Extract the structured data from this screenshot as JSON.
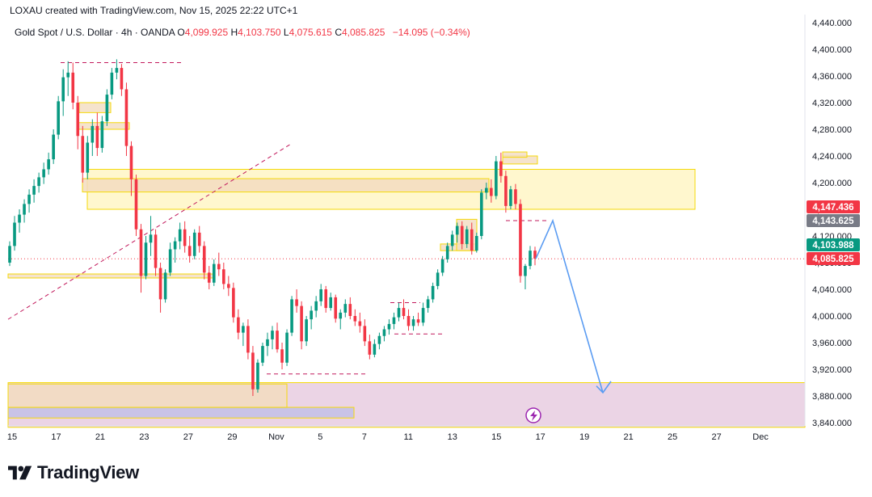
{
  "header": {
    "caption": "LOXAU created with TradingView.com, Nov 15, 2025 22:22 UTC+1",
    "symbol": "Gold Spot / U.S. Dollar · 4h · OANDA",
    "o_label": "O",
    "o_value": "4,099.925",
    "h_label": "H",
    "h_value": "4,103.750",
    "l_label": "L",
    "l_value": "4,075.615",
    "c_label": "C",
    "c_value": "4,085.825",
    "change": "−14.095 (−0.34%)"
  },
  "brand": {
    "logo_icon": "tradingview-logo-icon",
    "name": "TradingView"
  },
  "colors": {
    "up": "#089981",
    "down": "#f23645",
    "zone_yellow": "#fff6c5",
    "zone_border": "#f5d90a",
    "zone_orange": "#f3dcc0",
    "zone_pink": "#e8cde0",
    "zone_violet": "#c3bfe8",
    "projection": "#5b9cf2",
    "dashed": "#c2185b"
  },
  "chart_data": {
    "type": "candlestick",
    "symbol": "XAUUSD",
    "timeframe": "4h",
    "ylim": [
      3830,
      4450
    ],
    "yticks": [
      3840,
      3880,
      3920,
      3960,
      4000,
      4040,
      4080,
      4120,
      4160,
      4200,
      4240,
      4280,
      4320,
      4360,
      4400,
      4440
    ],
    "ytick_labels": [
      "3,840.000",
      "3,880.000",
      "3,920.000",
      "3,960.000",
      "4,000.000",
      "4,040.000",
      "4,080.000",
      "4,120.000",
      "4,160.000",
      "4,200.000",
      "4,240.000",
      "4,280.000",
      "4,320.000",
      "4,360.000",
      "4,400.000",
      "4,440.000"
    ],
    "xticks": [
      {
        "label": "15",
        "idx": 0
      },
      {
        "label": "17",
        "idx": 12
      },
      {
        "label": "21",
        "idx": 24
      },
      {
        "label": "23",
        "idx": 36
      },
      {
        "label": "27",
        "idx": 48
      },
      {
        "label": "29",
        "idx": 60
      },
      {
        "label": "Nov",
        "idx": 72
      },
      {
        "label": "5",
        "idx": 84
      },
      {
        "label": "7",
        "idx": 96
      },
      {
        "label": "11",
        "idx": 108
      },
      {
        "label": "13",
        "idx": 120
      },
      {
        "label": "15",
        "idx": 132
      },
      {
        "label": "17",
        "idx": 144
      },
      {
        "label": "19",
        "idx": 156
      },
      {
        "label": "21",
        "idx": 168
      },
      {
        "label": "25",
        "idx": 180
      },
      {
        "label": "27",
        "idx": 192
      },
      {
        "label": "Dec",
        "idx": 204
      }
    ],
    "x_count": 215,
    "price_labels": [
      {
        "text": "4,147.436",
        "value": 4147.436,
        "color": "#f23645"
      },
      {
        "text": "4,143.625",
        "value": 4143.625,
        "color": "#787b86"
      },
      {
        "text": "4,103.988",
        "value": 4103.988,
        "color": "#089981"
      },
      {
        "text": "4,085.825",
        "value": 4085.825,
        "color": "#f23645"
      }
    ],
    "last_price": 4085.825,
    "candles_ohlc": [
      [
        4080,
        4112,
        4075,
        4105
      ],
      [
        4105,
        4150,
        4098,
        4140
      ],
      [
        4140,
        4160,
        4125,
        4152
      ],
      [
        4152,
        4175,
        4140,
        4168
      ],
      [
        4168,
        4190,
        4155,
        4182
      ],
      [
        4182,
        4205,
        4170,
        4195
      ],
      [
        4195,
        4215,
        4185,
        4208
      ],
      [
        4208,
        4230,
        4198,
        4220
      ],
      [
        4220,
        4245,
        4212,
        4235
      ],
      [
        4235,
        4280,
        4228,
        4272
      ],
      [
        4272,
        4330,
        4265,
        4322
      ],
      [
        4322,
        4370,
        4300,
        4358
      ],
      [
        4358,
        4382,
        4330,
        4365
      ],
      [
        4365,
        4380,
        4310,
        4320
      ],
      [
        4320,
        4330,
        4250,
        4270
      ],
      [
        4270,
        4285,
        4200,
        4215
      ],
      [
        4215,
        4270,
        4205,
        4260
      ],
      [
        4260,
        4295,
        4240,
        4285
      ],
      [
        4285,
        4305,
        4240,
        4252
      ],
      [
        4252,
        4300,
        4245,
        4292
      ],
      [
        4292,
        4340,
        4285,
        4332
      ],
      [
        4332,
        4372,
        4325,
        4365
      ],
      [
        4365,
        4385,
        4355,
        4372
      ],
      [
        4372,
        4378,
        4330,
        4340
      ],
      [
        4340,
        4350,
        4240,
        4255
      ],
      [
        4255,
        4262,
        4180,
        4205
      ],
      [
        4205,
        4212,
        4120,
        4130
      ],
      [
        4130,
        4138,
        4035,
        4060
      ],
      [
        4060,
        4120,
        4055,
        4110
      ],
      [
        4110,
        4150,
        4090,
        4122
      ],
      [
        4122,
        4130,
        4060,
        4072
      ],
      [
        4072,
        4080,
        4005,
        4025
      ],
      [
        4025,
        4070,
        4020,
        4065
      ],
      [
        4065,
        4110,
        4060,
        4100
      ],
      [
        4100,
        4118,
        4080,
        4112
      ],
      [
        4112,
        4140,
        4100,
        4130
      ],
      [
        4130,
        4142,
        4095,
        4105
      ],
      [
        4105,
        4120,
        4080,
        4090
      ],
      [
        4090,
        4130,
        4085,
        4125
      ],
      [
        4125,
        4135,
        4095,
        4105
      ],
      [
        4105,
        4112,
        4055,
        4065
      ],
      [
        4065,
        4075,
        4040,
        4050
      ],
      [
        4050,
        4085,
        4045,
        4078
      ],
      [
        4078,
        4095,
        4060,
        4070
      ],
      [
        4070,
        4080,
        4040,
        4048
      ],
      [
        4048,
        4060,
        4030,
        4042
      ],
      [
        4042,
        4050,
        3990,
        3998
      ],
      [
        3998,
        4010,
        3965,
        3975
      ],
      [
        3975,
        3990,
        3955,
        3985
      ],
      [
        3985,
        3995,
        3935,
        3945
      ],
      [
        3945,
        3955,
        3880,
        3890
      ],
      [
        3890,
        3935,
        3885,
        3930
      ],
      [
        3930,
        3960,
        3925,
        3955
      ],
      [
        3955,
        3975,
        3940,
        3965
      ],
      [
        3965,
        3985,
        3950,
        3978
      ],
      [
        3978,
        3990,
        3945,
        3950
      ],
      [
        3950,
        3960,
        3920,
        3930
      ],
      [
        3930,
        3980,
        3925,
        3975
      ],
      [
        3975,
        4030,
        3970,
        4025
      ],
      [
        4025,
        4040,
        4005,
        4015
      ],
      [
        4015,
        4022,
        3950,
        3962
      ],
      [
        3962,
        4000,
        3955,
        3995
      ],
      [
        3995,
        4015,
        3980,
        4008
      ],
      [
        4008,
        4030,
        3998,
        4022
      ],
      [
        4022,
        4048,
        4015,
        4040
      ],
      [
        4040,
        4045,
        4005,
        4012
      ],
      [
        4012,
        4035,
        4008,
        4028
      ],
      [
        4028,
        4032,
        3990,
        3996
      ],
      [
        3996,
        4010,
        3980,
        4005
      ],
      [
        4005,
        4025,
        3998,
        4018
      ],
      [
        4018,
        4028,
        3995,
        4000
      ],
      [
        4000,
        4010,
        3985,
        3992
      ],
      [
        3992,
        4005,
        3975,
        3985
      ],
      [
        3985,
        3995,
        3955,
        3962
      ],
      [
        3962,
        3972,
        3935,
        3942
      ],
      [
        3942,
        3965,
        3938,
        3958
      ],
      [
        3958,
        3975,
        3950,
        3970
      ],
      [
        3970,
        3985,
        3962,
        3980
      ],
      [
        3980,
        3995,
        3972,
        3988
      ],
      [
        3988,
        4005,
        3980,
        3998
      ],
      [
        3998,
        4020,
        3992,
        4012
      ],
      [
        4012,
        4025,
        3995,
        4000
      ],
      [
        4000,
        4010,
        3978,
        3985
      ],
      [
        3985,
        4000,
        3978,
        3995
      ],
      [
        3995,
        4005,
        3985,
        3990
      ],
      [
        3990,
        4020,
        3985,
        4012
      ],
      [
        4012,
        4030,
        4005,
        4025
      ],
      [
        4025,
        4050,
        4020,
        4045
      ],
      [
        4045,
        4070,
        4040,
        4065
      ],
      [
        4065,
        4090,
        4060,
        4085
      ],
      [
        4085,
        4110,
        4080,
        4105
      ],
      [
        4105,
        4128,
        4098,
        4122
      ],
      [
        4122,
        4140,
        4110,
        4135
      ],
      [
        4135,
        4142,
        4100,
        4108
      ],
      [
        4108,
        4135,
        4102,
        4130
      ],
      [
        4130,
        4140,
        4092,
        4098
      ],
      [
        4098,
        4125,
        4095,
        4120
      ],
      [
        4120,
        4190,
        4115,
        4185
      ],
      [
        4185,
        4200,
        4175,
        4192
      ],
      [
        4192,
        4205,
        4170,
        4180
      ],
      [
        4180,
        4240,
        4175,
        4232
      ],
      [
        4232,
        4245,
        4200,
        4210
      ],
      [
        4210,
        4218,
        4155,
        4165
      ],
      [
        4165,
        4195,
        4160,
        4190
      ],
      [
        4190,
        4198,
        4160,
        4168
      ],
      [
        4168,
        4175,
        4050,
        4060
      ],
      [
        4060,
        4078,
        4040,
        4075
      ],
      [
        4075,
        4105,
        4070,
        4098
      ],
      [
        4098,
        4104,
        4076,
        4086
      ]
    ],
    "projection_path": [
      [
        4086,
        0
      ],
      [
        4143,
        0
      ],
      [
        3890,
        0
      ]
    ],
    "zones": [
      {
        "kind": "supply-yellow",
        "top": 4220,
        "bottom": 4160
      },
      {
        "kind": "supply-orange",
        "top": 4206,
        "bottom": 4186
      },
      {
        "kind": "demand-pink",
        "top": 3900,
        "bottom": 3833
      },
      {
        "kind": "demand-orange",
        "top": 3898,
        "bottom": 3862
      },
      {
        "kind": "demand-violet",
        "top": 3863,
        "bottom": 3847
      }
    ],
    "annotation_icon": "lightning-icon"
  }
}
